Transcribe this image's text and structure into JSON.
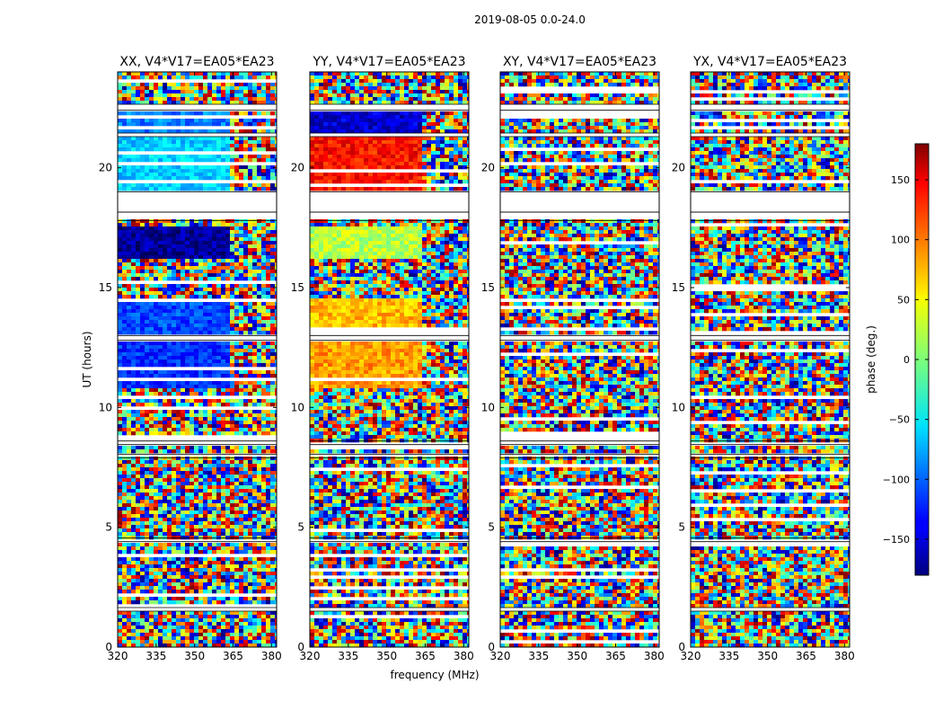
{
  "chart_data": {
    "type": "heatmap",
    "title": "2019-08-05 0.0-24.0",
    "xlabel": "frequency (MHz)",
    "ylabel": "UT (hours)",
    "xlim": [
      320,
      382
    ],
    "ylim": [
      0,
      24
    ],
    "xticks": [
      320,
      335,
      350,
      365,
      380
    ],
    "yticks": [
      0,
      5,
      10,
      15,
      20
    ],
    "panels": [
      {
        "title": "XX, V4*V17=EA05*EA23",
        "pol": "XX"
      },
      {
        "title": "YY, V4*V17=EA05*EA23",
        "pol": "YY"
      },
      {
        "title": "XY, V4*V17=EA05*EA23",
        "pol": "XY"
      },
      {
        "title": "YX, V4*V17=EA05*EA23",
        "pol": "YX"
      }
    ],
    "colorbar": {
      "label": "phase (deg.)",
      "range": [
        -180,
        180
      ],
      "ticks": [
        -150,
        -100,
        -50,
        0,
        50,
        100,
        150
      ],
      "tick_labels": [
        "−150",
        "−100",
        "−50",
        "0",
        "50",
        "100",
        "150"
      ],
      "colormap": "jet"
    },
    "flagged_ut_ranges": [
      [
        1.5,
        1.65
      ],
      [
        4.4,
        4.55
      ],
      [
        7.9,
        8.05
      ],
      [
        8.45,
        8.6
      ],
      [
        12.8,
        13.0
      ],
      [
        17.8,
        18.15
      ],
      [
        18.15,
        19.0
      ],
      [
        21.3,
        21.45
      ],
      [
        22.4,
        22.65
      ]
    ],
    "coherent_phase_bands": [
      {
        "ut": [
          10.8,
          12.8
        ],
        "XX_deg": -120,
        "YY_deg": 80
      },
      {
        "ut": [
          13.0,
          14.6
        ],
        "XX_deg": -110,
        "YY_deg": 70
      },
      {
        "ut": [
          16.2,
          17.6
        ],
        "XX_deg": -170,
        "YY_deg": 20
      },
      {
        "ut": [
          19.0,
          21.3
        ],
        "XX_deg": -60,
        "YY_deg": 130
      },
      {
        "ut": [
          21.45,
          22.4
        ],
        "XX_deg": -90,
        "YY_deg": -150
      }
    ],
    "band_edge_mhz": 363
  }
}
